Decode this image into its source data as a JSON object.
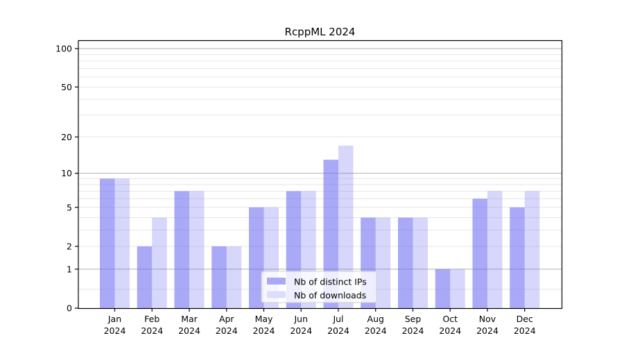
{
  "chart_data": {
    "type": "bar",
    "title": "RcppML 2024",
    "categories": [
      "Jan",
      "Feb",
      "Mar",
      "Apr",
      "May",
      "Jun",
      "Jul",
      "Aug",
      "Sep",
      "Oct",
      "Nov",
      "Dec"
    ],
    "category_year": "2024",
    "series": [
      {
        "name": "Nb of distinct IPs",
        "values": [
          9,
          2,
          7,
          2,
          5,
          7,
          13,
          4,
          4,
          1,
          6,
          5
        ]
      },
      {
        "name": "Nb of downloads",
        "values": [
          9,
          4,
          7,
          2,
          5,
          7,
          17,
          4,
          4,
          1,
          7,
          7
        ]
      }
    ],
    "yscale": "log1p",
    "ylim": [
      0,
      115
    ],
    "yticks": [
      0,
      1,
      2,
      5,
      10,
      20,
      50,
      100
    ],
    "ytick_labels": [
      "0",
      "1",
      "2",
      "5",
      "10",
      "20",
      "50",
      "100"
    ],
    "major_gridlines": [
      1,
      10,
      100
    ],
    "minor_gridlines": [
      0.4,
      2,
      3,
      4,
      5,
      6,
      7,
      8,
      9,
      20,
      30,
      40,
      50,
      60,
      70,
      80,
      90
    ],
    "grid": true,
    "legend_position": "lower center"
  },
  "colors": {
    "bar_distinct_ips": "rgba(107,107,242,0.58)",
    "bar_downloads": "rgba(107,107,242,0.27)",
    "legend_swatch_ips": "#a9a9f7",
    "legend_swatch_downloads": "#dcddfa",
    "major_gridline": "#b0b0b0",
    "minor_gridline": "#e6e6e6",
    "spine": "#000000",
    "tick_label": "#000000",
    "title_text": "#000000",
    "legend_border": "#cccccc",
    "legend_bg": "rgba(255,255,255,0.8)"
  }
}
